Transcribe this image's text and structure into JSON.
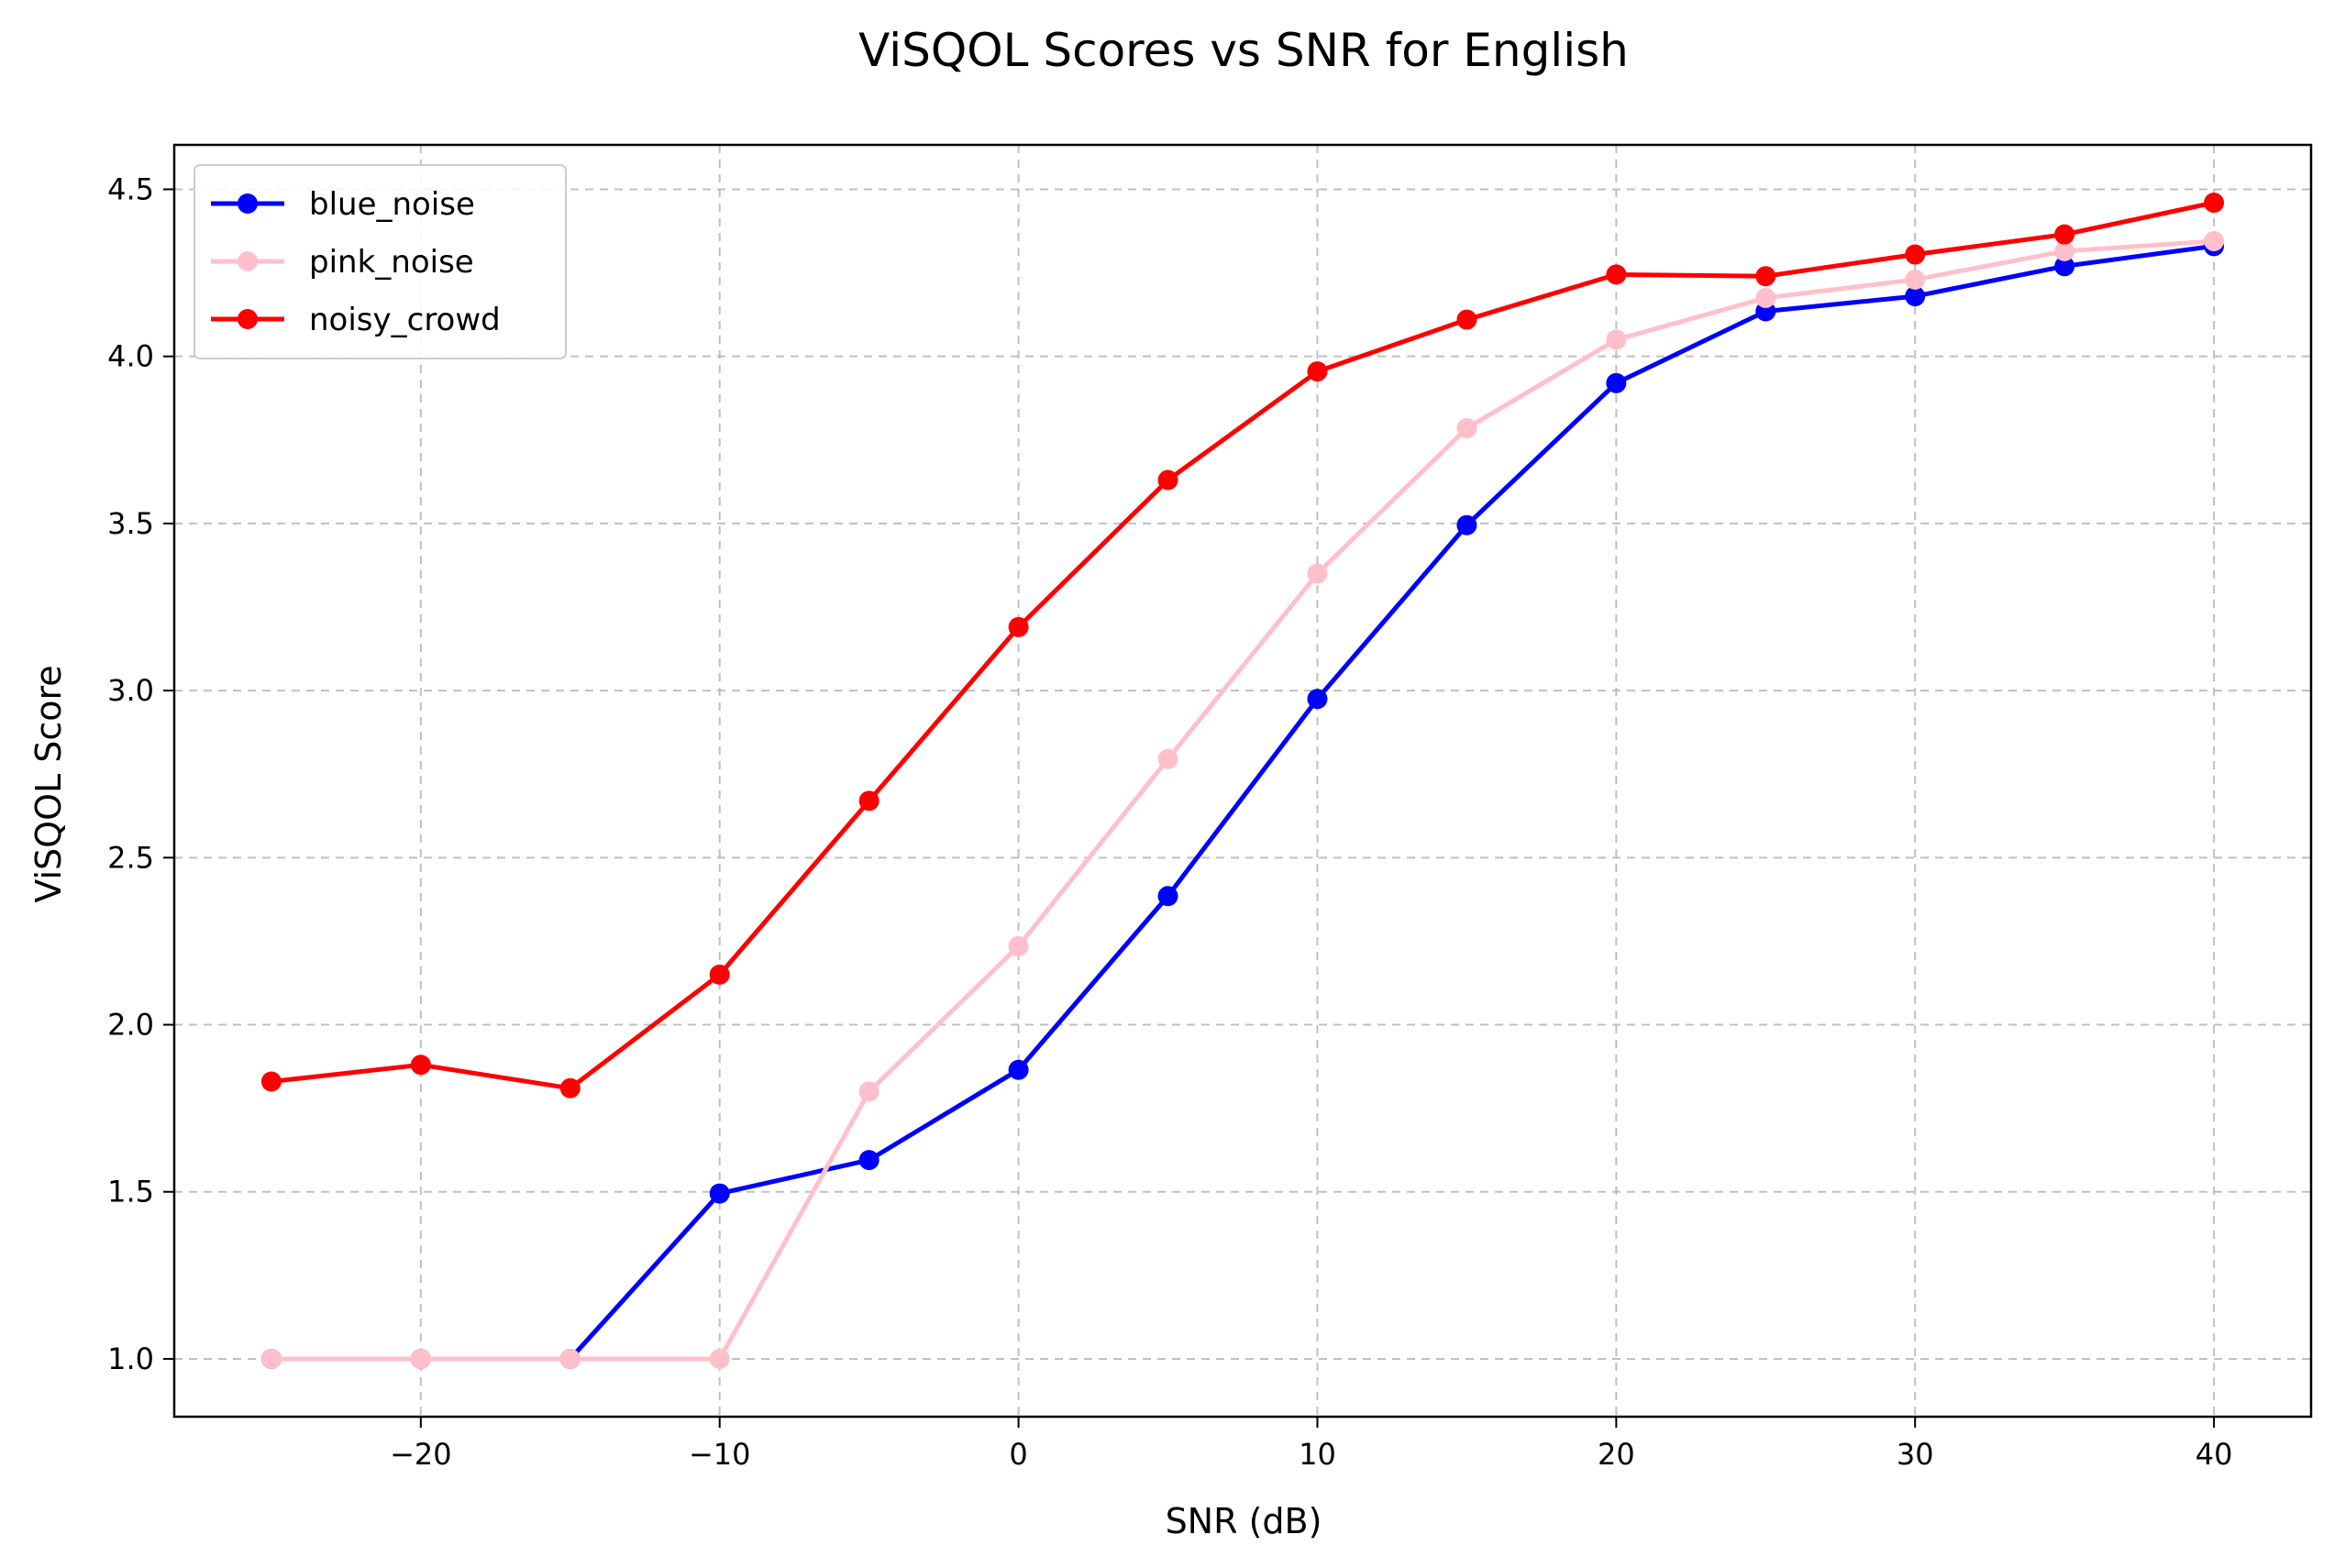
{
  "chart_data": {
    "type": "line",
    "title": "ViSQOL Scores vs SNR for English",
    "xlabel": "SNR (dB)",
    "ylabel": "ViSQOL Score",
    "x": [
      -25,
      -20,
      -15,
      -10,
      -5,
      0,
      5,
      10,
      15,
      20,
      25,
      30,
      35,
      40
    ],
    "xlim": [
      -28.25,
      43.25
    ],
    "ylim": [
      0.827,
      4.633
    ],
    "xticks": [
      -20,
      -10,
      0,
      10,
      20,
      30,
      40
    ],
    "xtick_labels": [
      "−20",
      "−10",
      "0",
      "10",
      "20",
      "30",
      "40"
    ],
    "yticks": [
      1.0,
      1.5,
      2.0,
      2.5,
      3.0,
      3.5,
      4.0,
      4.5
    ],
    "ytick_labels": [
      "1.0",
      "1.5",
      "2.0",
      "2.5",
      "3.0",
      "3.5",
      "4.0",
      "4.5"
    ],
    "grid": true,
    "legend_position": "top-left",
    "series": [
      {
        "name": "blue_noise",
        "color": "#0000ff",
        "values": [
          1.0,
          1.0,
          1.0,
          1.495,
          1.595,
          1.865,
          2.385,
          2.975,
          3.495,
          3.92,
          4.135,
          4.18,
          4.27,
          4.33
        ]
      },
      {
        "name": "pink_noise",
        "color": "#ffc0cb",
        "values": [
          1.0,
          1.0,
          1.0,
          1.0,
          1.8,
          2.235,
          2.795,
          3.35,
          3.785,
          4.05,
          4.175,
          4.23,
          4.315,
          4.345
        ]
      },
      {
        "name": "noisy_crowd",
        "color": "#ff0000",
        "values": [
          1.83,
          1.88,
          1.81,
          2.15,
          2.67,
          3.19,
          3.63,
          3.955,
          4.11,
          4.245,
          4.24,
          4.305,
          4.365,
          4.46
        ]
      }
    ]
  }
}
